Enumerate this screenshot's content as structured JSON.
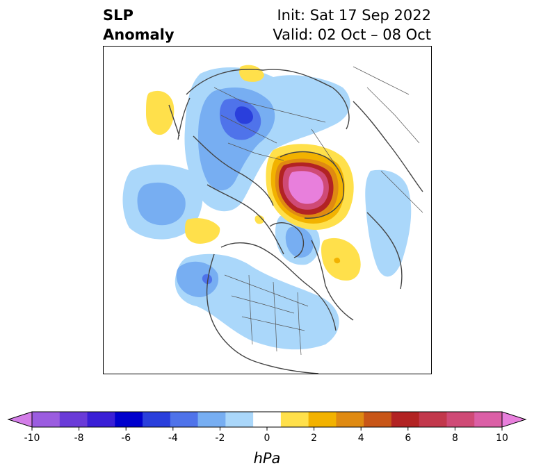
{
  "title": {
    "left_line1": "SLP",
    "left_line2": "Anomaly",
    "init": "Init: Sat 17 Sep 2022",
    "valid": "Valid: 02 Oct – 08 Oct"
  },
  "colorbar": {
    "unit": "hPa",
    "ticks": [
      "-10",
      "-8",
      "-6",
      "-4",
      "-2",
      "0",
      "2",
      "4",
      "6",
      "8",
      "10"
    ],
    "colors": [
      "#d37de8",
      "#9b5ce0",
      "#6a3bd8",
      "#3a1fd6",
      "#0000cd",
      "#2a3fdc",
      "#4f73ea",
      "#77aef2",
      "#aad7fa",
      "#ffffff",
      "#ffe04b",
      "#f2b200",
      "#df8a12",
      "#c85618",
      "#b22323",
      "#c2384c",
      "#cf4a76",
      "#db5fa6",
      "#e87fdc"
    ]
  },
  "map": {
    "anomaly_colors": {
      "light_blue": "#aad7fa",
      "mid_blue": "#77aef2",
      "blue": "#4f73ea",
      "dark_blue": "#2a3fdc",
      "yellow": "#ffe04b",
      "orange": "#f2b200",
      "dark_orange": "#df8a12",
      "red": "#b22323",
      "magenta": "#cf4a76",
      "pink": "#e87fdc"
    }
  }
}
